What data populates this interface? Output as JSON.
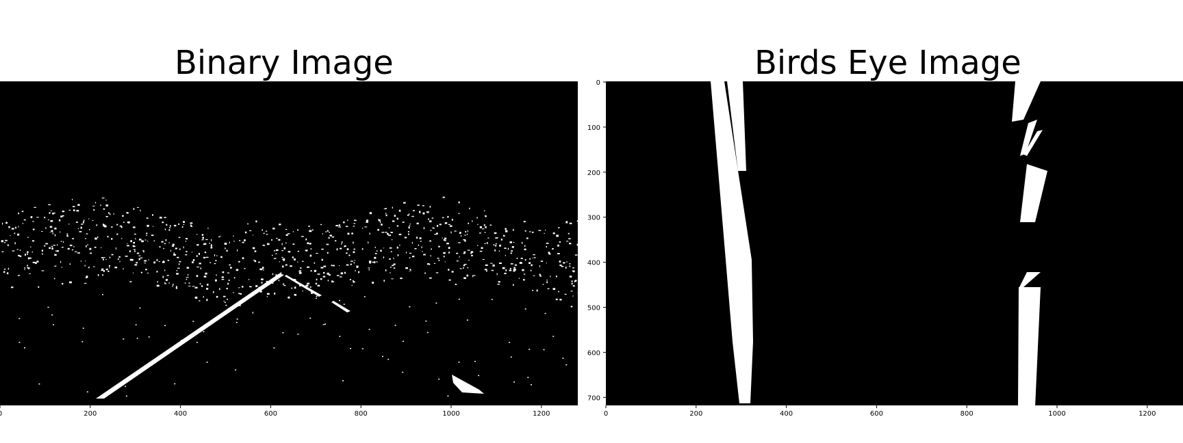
{
  "colors": {
    "background": "#000000",
    "foreground": "#ffffff",
    "page": "#ffffff"
  },
  "panels": [
    {
      "title": "Binary Image",
      "xticks": [
        "0",
        "200",
        "400",
        "600",
        "800",
        "1000",
        "1200"
      ],
      "yticks": []
    },
    {
      "title": "Birds Eye Image",
      "xticks": [
        "0",
        "200",
        "400",
        "600",
        "800",
        "1000",
        "1200"
      ],
      "yticks": [
        "0",
        "100",
        "200",
        "300",
        "400",
        "500",
        "600",
        "700"
      ]
    }
  ]
}
